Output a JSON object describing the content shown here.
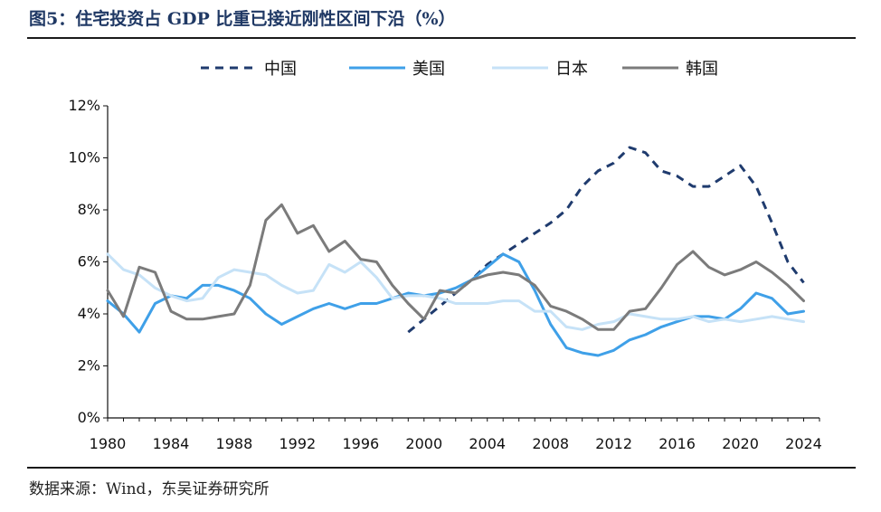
{
  "header": {
    "title": "图5：住宅投资占 GDP 比重已接近刚性区间下沿（%）"
  },
  "footer": {
    "source": "数据来源：Wind，东吴证券研究所"
  },
  "chart_data": {
    "type": "line",
    "title": "图5：住宅投资占 GDP 比重已接近刚性区间下沿（%）",
    "xlabel": "",
    "ylabel": "",
    "xlim": [
      1980,
      2025
    ],
    "ylim": [
      0,
      12
    ],
    "y_ticks": [
      0,
      2,
      4,
      6,
      8,
      10,
      12
    ],
    "y_tick_labels": [
      "0%",
      "2%",
      "4%",
      "6%",
      "8%",
      "10%",
      "12%"
    ],
    "x_ticks": [
      1980,
      1984,
      1988,
      1992,
      1996,
      2000,
      2004,
      2008,
      2012,
      2016,
      2020,
      2024
    ],
    "x_tick_labels": [
      "1980",
      "1984",
      "1988",
      "1992",
      "1996",
      "2000",
      "2004",
      "2008",
      "2012",
      "2016",
      "2020",
      "2024"
    ],
    "grid": false,
    "legend_position": "top-center",
    "series": [
      {
        "name": "中国",
        "color": "#1f3b6e",
        "style": "dashed",
        "x": [
          1999,
          2000,
          2001,
          2002,
          2003,
          2004,
          2005,
          2006,
          2007,
          2008,
          2009,
          2010,
          2011,
          2012,
          2013,
          2014,
          2015,
          2016,
          2017,
          2018,
          2019,
          2020,
          2021,
          2022,
          2023,
          2024
        ],
        "y": [
          3.3,
          3.8,
          4.3,
          4.8,
          5.3,
          5.9,
          6.3,
          6.7,
          7.1,
          7.5,
          8.0,
          8.9,
          9.5,
          9.8,
          10.4,
          10.2,
          9.5,
          9.3,
          8.9,
          8.9,
          9.3,
          9.7,
          8.9,
          7.5,
          6.0,
          5.2
        ]
      },
      {
        "name": "美国",
        "color": "#3fa0e8",
        "style": "solid",
        "x": [
          1980,
          1981,
          1982,
          1983,
          1984,
          1985,
          1986,
          1987,
          1988,
          1989,
          1990,
          1991,
          1992,
          1993,
          1994,
          1995,
          1996,
          1997,
          1998,
          1999,
          2000,
          2001,
          2002,
          2003,
          2004,
          2005,
          2006,
          2007,
          2008,
          2009,
          2010,
          2011,
          2012,
          2013,
          2014,
          2015,
          2016,
          2017,
          2018,
          2019,
          2020,
          2021,
          2022,
          2023,
          2024
        ],
        "y": [
          4.5,
          4.0,
          3.3,
          4.4,
          4.7,
          4.6,
          5.1,
          5.1,
          4.9,
          4.6,
          4.0,
          3.6,
          3.9,
          4.2,
          4.4,
          4.2,
          4.4,
          4.4,
          4.6,
          4.8,
          4.7,
          4.8,
          5.0,
          5.3,
          5.8,
          6.3,
          6.0,
          4.9,
          3.6,
          2.7,
          2.5,
          2.4,
          2.6,
          3.0,
          3.2,
          3.5,
          3.7,
          3.9,
          3.9,
          3.8,
          4.2,
          4.8,
          4.6,
          4.0,
          4.1
        ]
      },
      {
        "name": "日本",
        "color": "#c6e2f7",
        "style": "solid",
        "x": [
          1980,
          1981,
          1982,
          1983,
          1984,
          1985,
          1986,
          1987,
          1988,
          1989,
          1990,
          1991,
          1992,
          1993,
          1994,
          1995,
          1996,
          1997,
          1998,
          1999,
          2000,
          2001,
          2002,
          2003,
          2004,
          2005,
          2006,
          2007,
          2008,
          2009,
          2010,
          2011,
          2012,
          2013,
          2014,
          2015,
          2016,
          2017,
          2018,
          2019,
          2020,
          2021,
          2022,
          2023,
          2024
        ],
        "y": [
          6.3,
          5.7,
          5.5,
          5.0,
          4.7,
          4.5,
          4.6,
          5.4,
          5.7,
          5.6,
          5.5,
          5.1,
          4.8,
          4.9,
          5.9,
          5.6,
          6.0,
          5.4,
          4.6,
          4.7,
          4.7,
          4.6,
          4.4,
          4.4,
          4.4,
          4.5,
          4.5,
          4.1,
          4.1,
          3.5,
          3.4,
          3.6,
          3.7,
          4.0,
          3.9,
          3.8,
          3.8,
          3.9,
          3.7,
          3.8,
          3.7,
          3.8,
          3.9,
          3.8,
          3.7
        ]
      },
      {
        "name": "韩国",
        "color": "#7b7b7b",
        "style": "solid",
        "x": [
          1980,
          1981,
          1982,
          1983,
          1984,
          1985,
          1986,
          1987,
          1988,
          1989,
          1990,
          1991,
          1992,
          1993,
          1994,
          1995,
          1996,
          1997,
          1998,
          1999,
          2000,
          2001,
          2002,
          2003,
          2004,
          2005,
          2006,
          2007,
          2008,
          2009,
          2010,
          2011,
          2012,
          2013,
          2014,
          2015,
          2016,
          2017,
          2018,
          2019,
          2020,
          2021,
          2022,
          2023,
          2024
        ],
        "y": [
          4.9,
          3.9,
          5.8,
          5.6,
          4.1,
          3.8,
          3.8,
          3.9,
          4.0,
          5.1,
          7.6,
          8.2,
          7.1,
          7.4,
          6.4,
          6.8,
          6.1,
          6.0,
          5.1,
          4.4,
          3.8,
          4.9,
          4.8,
          5.3,
          5.5,
          5.6,
          5.5,
          5.1,
          4.3,
          4.1,
          3.8,
          3.4,
          3.4,
          4.1,
          4.2,
          5.0,
          5.9,
          6.4,
          5.8,
          5.5,
          5.7,
          6.0,
          5.6,
          5.1,
          4.5
        ]
      }
    ]
  }
}
